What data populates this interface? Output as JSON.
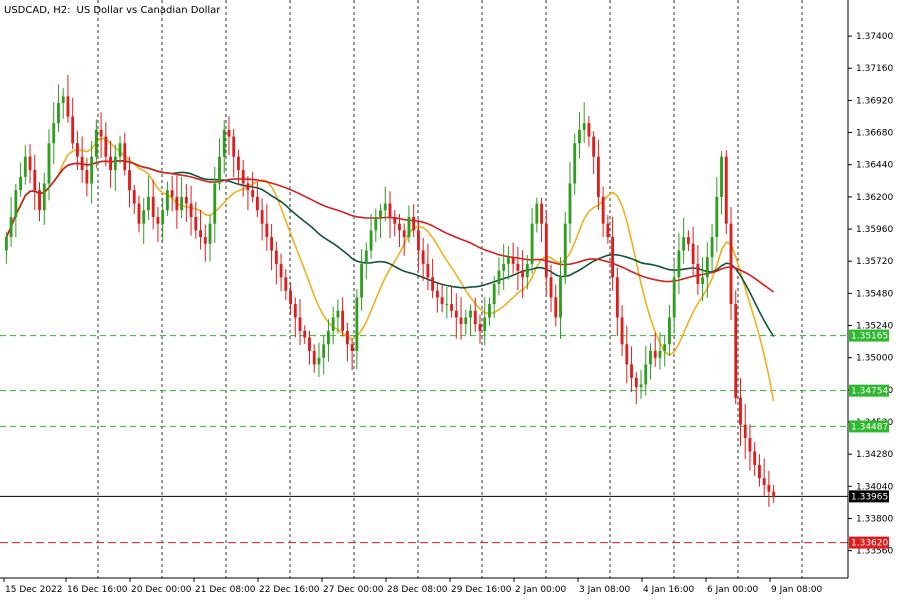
{
  "header": {
    "symbol": "USDCAD, H2:",
    "description": "US Dollar vs Canadian Dollar"
  },
  "colors": {
    "bull": "#2e9e1f",
    "bear": "#e01b1b",
    "ma_fast": "#f0b020",
    "ma_mid": "#12523f",
    "ma_slow": "#d62020",
    "support": "#2eb82e",
    "target": "#e01b1b",
    "current": "#000000",
    "grid": "#000000"
  },
  "chart_data": {
    "type": "candlestick",
    "symbol": "USDCAD",
    "timeframe": "H2",
    "y_axis": {
      "min": 1.3352,
      "max": 1.3752,
      "ticks": [
        "1.37400",
        "1.37160",
        "1.36920",
        "1.36680",
        "1.36440",
        "1.36200",
        "1.35960",
        "1.35720",
        "1.35480",
        "1.35240",
        "1.35000",
        "1.34760",
        "1.34520",
        "1.34280",
        "1.34040",
        "1.33800",
        "1.33560"
      ]
    },
    "x_axis": {
      "labels": [
        "15 Dec 2022",
        "16 Dec 16:00",
        "20 Dec 00:00",
        "21 Dec 08:00",
        "22 Dec 16:00",
        "27 Dec 00:00",
        "28 Dec 08:00",
        "29 Dec 16:00",
        "2 Jan 00:00",
        "3 Jan 08:00",
        "4 Jan 16:00",
        "6 Jan 00:00",
        "9 Jan 08:00"
      ]
    },
    "price_levels": [
      {
        "label": "1.35165",
        "value": 1.35165,
        "style": "support"
      },
      {
        "label": "1.34754",
        "value": 1.34754,
        "style": "support"
      },
      {
        "label": "1.34487",
        "value": 1.34487,
        "style": "support"
      },
      {
        "label": "1.33965",
        "value": 1.33965,
        "style": "current"
      },
      {
        "label": "1.33620",
        "value": 1.3362,
        "style": "target"
      }
    ],
    "close": [
      1.359,
      1.3605,
      1.3625,
      1.3635,
      1.365,
      1.364,
      1.3625,
      1.361,
      1.363,
      1.366,
      1.3675,
      1.369,
      1.3695,
      1.368,
      1.366,
      1.365,
      1.364,
      1.363,
      1.365,
      1.367,
      1.3665,
      1.365,
      1.364,
      1.365,
      1.366,
      1.364,
      1.3625,
      1.3615,
      1.36,
      1.361,
      1.362,
      1.3605,
      1.36,
      1.361,
      1.3625,
      1.362,
      1.361,
      1.362,
      1.3615,
      1.3605,
      1.3595,
      1.359,
      1.3585,
      1.36,
      1.363,
      1.365,
      1.367,
      1.3665,
      1.365,
      1.364,
      1.363,
      1.3625,
      1.362,
      1.361,
      1.36,
      1.359,
      1.358,
      1.357,
      1.356,
      1.355,
      1.354,
      1.353,
      1.352,
      1.3515,
      1.3505,
      1.3495,
      1.35,
      1.351,
      1.352,
      1.353,
      1.3535,
      1.352,
      1.351,
      1.3505,
      1.3545,
      1.357,
      1.358,
      1.3595,
      1.3605,
      1.361,
      1.3615,
      1.3605,
      1.36,
      1.3595,
      1.359,
      1.3605,
      1.3595,
      1.358,
      1.357,
      1.356,
      1.355,
      1.3545,
      1.354,
      1.354,
      1.3535,
      1.353,
      1.3525,
      1.353,
      1.3535,
      1.3525,
      1.352,
      1.353,
      1.354,
      1.3555,
      1.3565,
      1.357,
      1.3575,
      1.357,
      1.3565,
      1.356,
      1.357,
      1.36,
      1.3615,
      1.36,
      1.356,
      1.3545,
      1.353,
      1.356,
      1.36,
      1.363,
      1.366,
      1.367,
      1.3675,
      1.3665,
      1.365,
      1.362,
      1.36,
      1.359,
      1.356,
      1.353,
      1.351,
      1.3495,
      1.3485,
      1.3478,
      1.348,
      1.3495,
      1.3505,
      1.35,
      1.3505,
      1.351,
      1.353,
      1.356,
      1.358,
      1.359,
      1.3585,
      1.357,
      1.3555,
      1.356,
      1.3575,
      1.359,
      1.362,
      1.365,
      1.36,
      1.354,
      1.347,
      1.345,
      1.344,
      1.343,
      1.342,
      1.341,
      1.3405,
      1.34,
      1.3396
    ]
  }
}
